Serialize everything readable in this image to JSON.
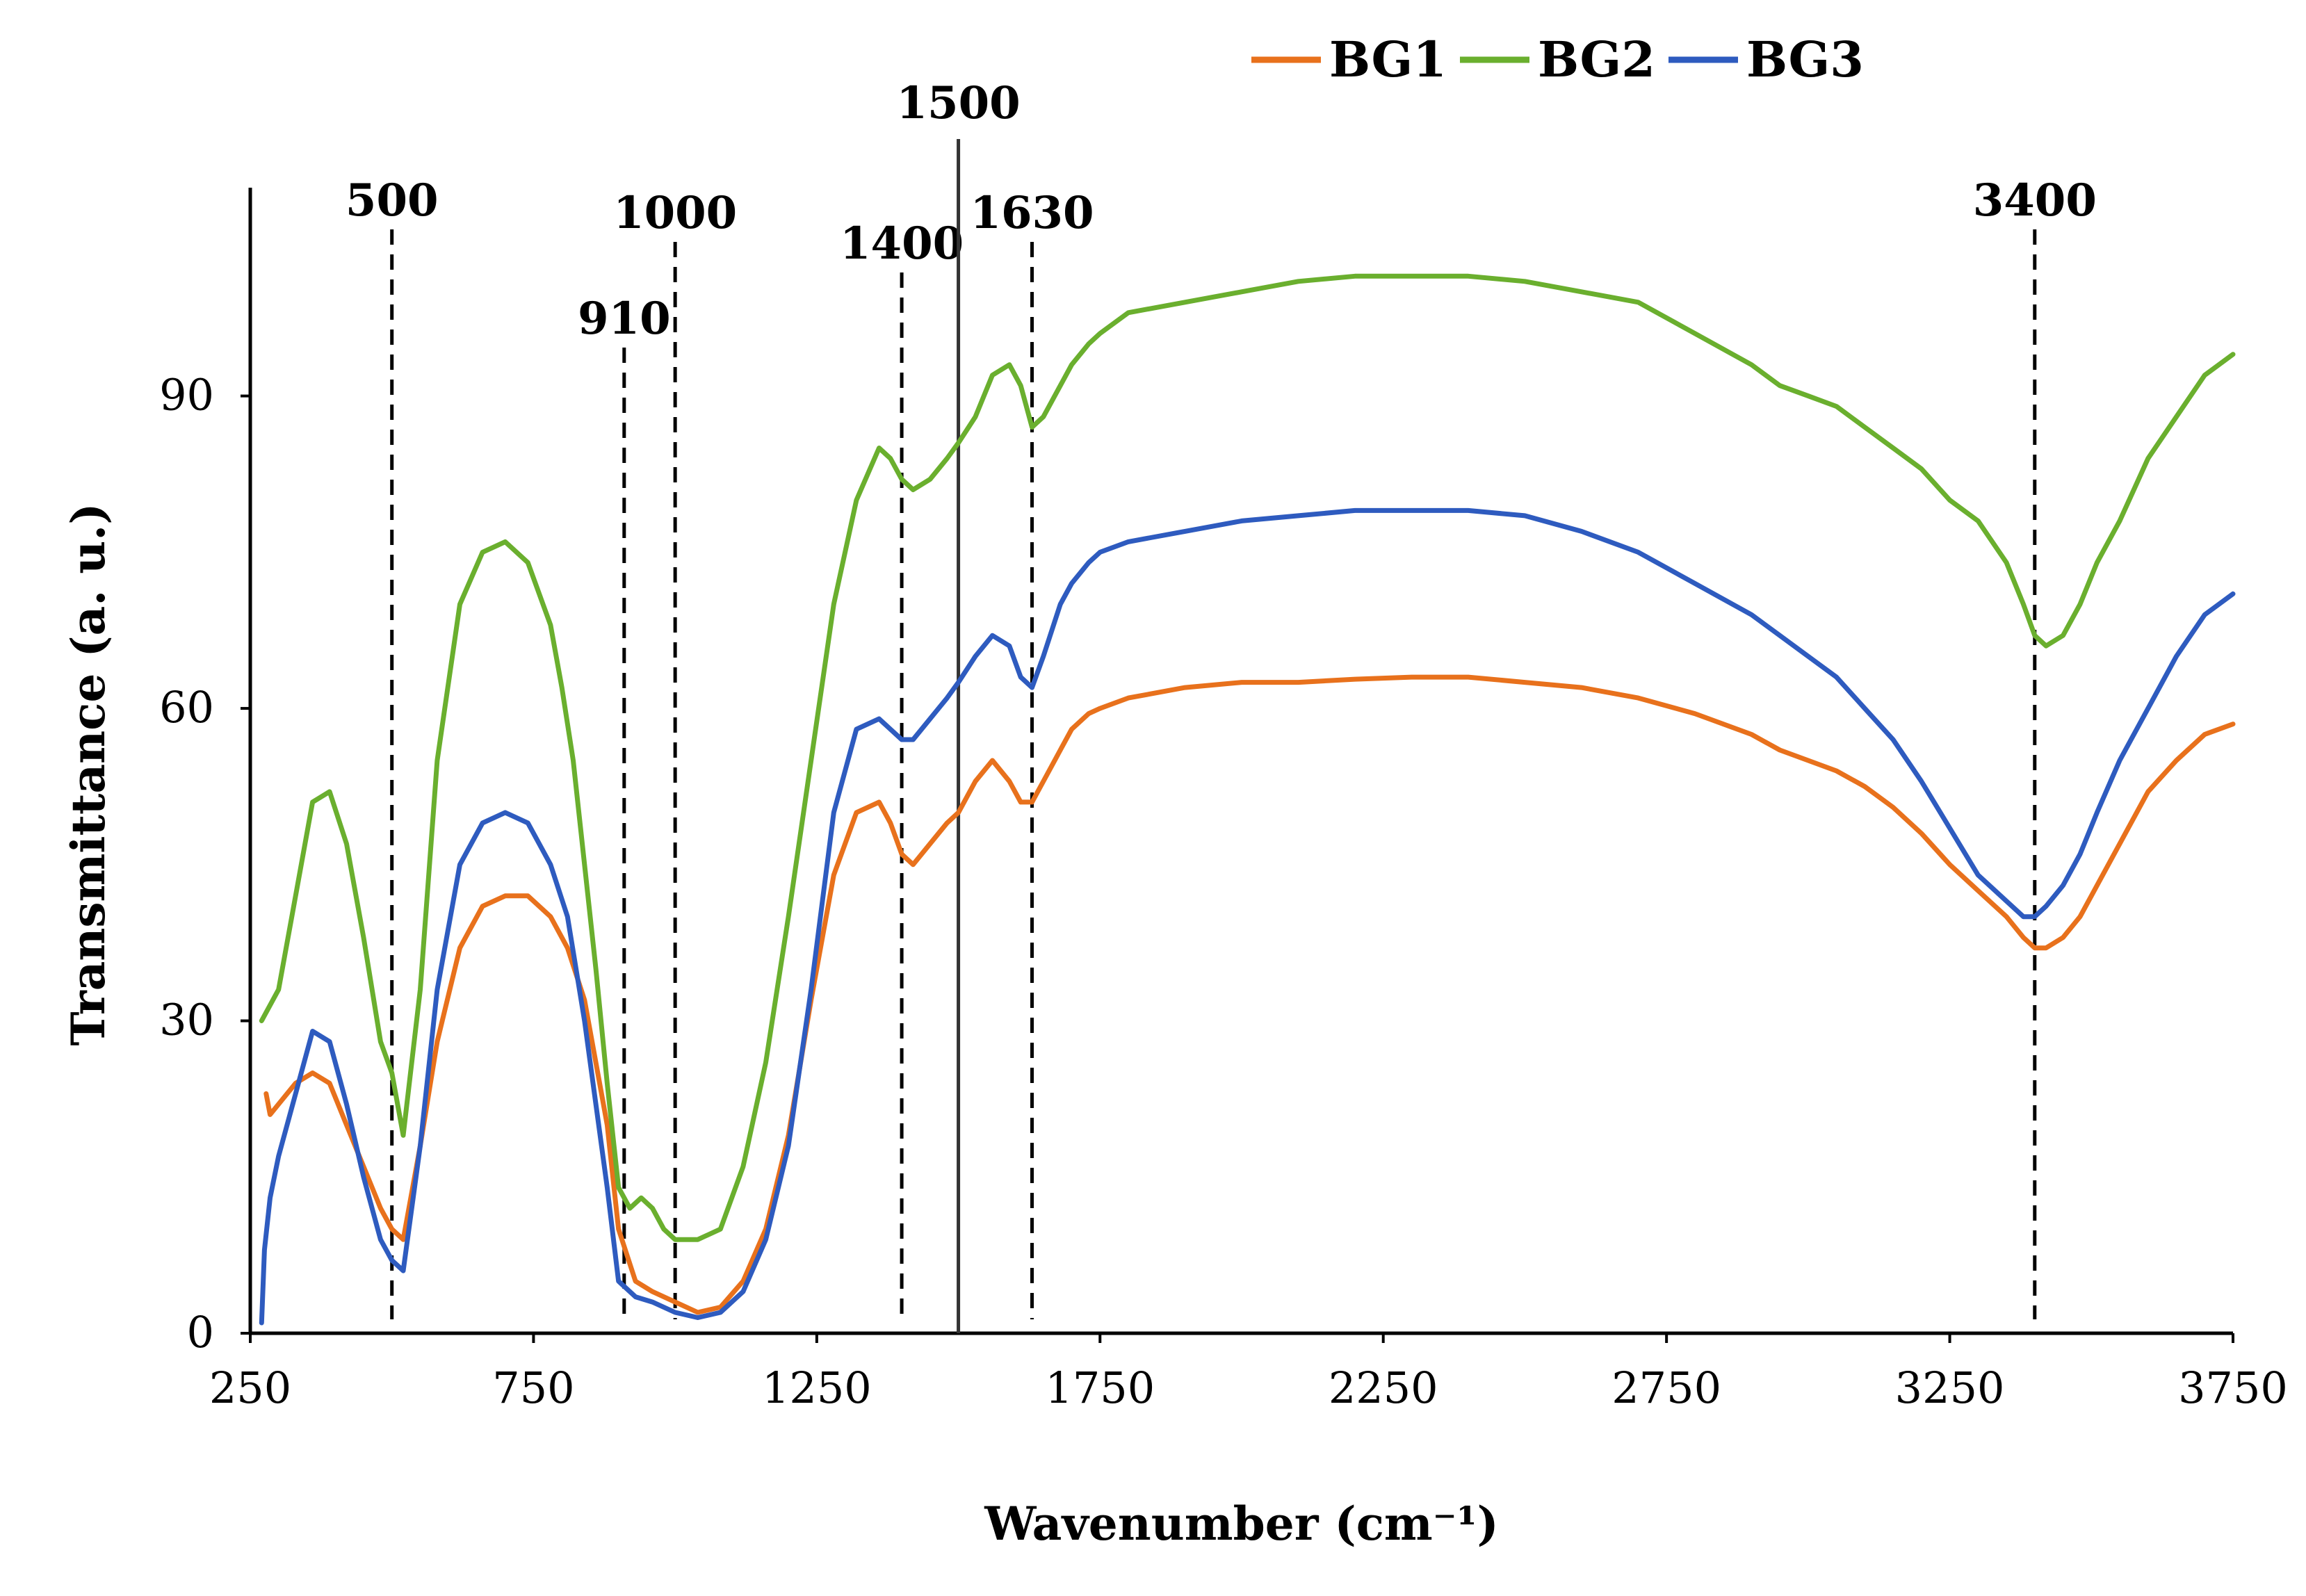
{
  "chart_data": {
    "type": "line",
    "title": "",
    "xlabel": "Wavenumber (cm⁻¹)",
    "ylabel": "Transmittance (a. u.)",
    "xlim": [
      250,
      3750
    ],
    "ylim": [
      0,
      110
    ],
    "xticks": [
      250,
      750,
      1250,
      1750,
      2250,
      2750,
      3250,
      3750
    ],
    "yticks": [
      0,
      30,
      60,
      90
    ],
    "legend_position": "top-right",
    "peak_lines": [
      {
        "x": 500,
        "label": "500",
        "style": "dashed"
      },
      {
        "x": 910,
        "label": "910",
        "style": "dashed"
      },
      {
        "x": 1000,
        "label": "1000",
        "style": "dashed"
      },
      {
        "x": 1400,
        "label": "1400",
        "style": "dashed"
      },
      {
        "x": 1500,
        "label": "1500",
        "style": "solid"
      },
      {
        "x": 1630,
        "label": "1630",
        "style": "dashed"
      },
      {
        "x": 3400,
        "label": "3400",
        "style": "dashed"
      }
    ],
    "series": [
      {
        "name": "BG1",
        "color": "#E8711C",
        "x": [
          278,
          285,
          300,
          330,
          360,
          390,
          420,
          450,
          480,
          500,
          520,
          550,
          580,
          620,
          660,
          700,
          740,
          780,
          810,
          840,
          860,
          880,
          900,
          930,
          960,
          1000,
          1040,
          1080,
          1120,
          1160,
          1200,
          1240,
          1280,
          1320,
          1360,
          1380,
          1400,
          1420,
          1450,
          1480,
          1500,
          1530,
          1560,
          1590,
          1610,
          1630,
          1650,
          1680,
          1700,
          1730,
          1750,
          1800,
          1900,
          2000,
          2100,
          2200,
          2300,
          2400,
          2500,
          2600,
          2700,
          2800,
          2900,
          2950,
          3000,
          3050,
          3100,
          3150,
          3200,
          3250,
          3300,
          3350,
          3380,
          3400,
          3420,
          3450,
          3480,
          3510,
          3550,
          3600,
          3650,
          3700,
          3750
        ],
        "values": [
          23,
          21,
          22,
          24,
          25,
          24,
          20,
          16,
          12,
          10,
          9,
          18,
          28,
          37,
          41,
          42,
          42,
          40,
          37,
          32,
          26,
          20,
          10,
          5,
          4,
          3,
          2,
          2.5,
          5,
          10,
          19,
          32,
          44,
          50,
          51,
          49,
          46,
          45,
          47,
          49,
          50,
          53,
          55,
          53,
          51,
          51,
          53,
          56,
          58,
          59.5,
          60,
          61,
          62,
          62.5,
          62.5,
          62.8,
          63,
          63,
          62.5,
          62,
          61,
          59.5,
          57.5,
          56,
          55,
          54,
          52.5,
          50.5,
          48,
          45,
          42.5,
          40,
          38,
          37,
          37,
          38,
          40,
          43,
          47,
          52,
          55,
          57.5,
          58.5
        ]
      },
      {
        "name": "BG2",
        "color": "#6AAF2E",
        "x": [
          270,
          300,
          330,
          360,
          390,
          420,
          450,
          480,
          500,
          520,
          550,
          580,
          620,
          660,
          700,
          740,
          780,
          800,
          820,
          840,
          860,
          880,
          900,
          920,
          940,
          960,
          980,
          1000,
          1040,
          1080,
          1120,
          1160,
          1200,
          1240,
          1280,
          1320,
          1360,
          1380,
          1400,
          1420,
          1450,
          1480,
          1500,
          1530,
          1560,
          1590,
          1610,
          1630,
          1650,
          1680,
          1700,
          1730,
          1750,
          1800,
          1900,
          2000,
          2100,
          2200,
          2300,
          2400,
          2500,
          2600,
          2700,
          2800,
          2900,
          2950,
          3000,
          3050,
          3100,
          3150,
          3200,
          3250,
          3300,
          3350,
          3380,
          3400,
          3420,
          3450,
          3480,
          3510,
          3550,
          3600,
          3650,
          3700,
          3750
        ],
        "values": [
          30,
          33,
          42,
          51,
          52,
          47,
          38,
          28,
          25,
          19,
          33,
          55,
          70,
          75,
          76,
          74,
          68,
          62,
          55,
          45,
          35,
          24,
          14,
          12,
          13,
          12,
          10,
          9,
          9,
          10,
          16,
          26,
          40,
          55,
          70,
          80,
          85,
          84,
          82,
          81,
          82,
          84,
          85.5,
          88,
          92,
          93,
          91,
          87,
          88,
          91,
          93,
          95,
          96,
          98,
          99,
          100,
          101,
          101.5,
          101.5,
          101.5,
          101,
          100,
          99,
          96,
          93,
          91,
          90,
          89,
          87,
          85,
          83,
          80,
          78,
          74,
          70,
          67,
          66,
          67,
          70,
          74,
          78,
          84,
          88,
          92,
          94
        ]
      },
      {
        "name": "BG3",
        "color": "#2E5BBF",
        "x": [
          270,
          275,
          285,
          300,
          330,
          360,
          390,
          420,
          450,
          480,
          500,
          520,
          550,
          580,
          620,
          660,
          700,
          740,
          780,
          810,
          840,
          860,
          880,
          900,
          930,
          960,
          1000,
          1040,
          1080,
          1120,
          1160,
          1200,
          1240,
          1280,
          1320,
          1360,
          1380,
          1400,
          1420,
          1450,
          1480,
          1500,
          1530,
          1560,
          1590,
          1610,
          1630,
          1650,
          1680,
          1700,
          1730,
          1750,
          1800,
          1900,
          2000,
          2100,
          2200,
          2300,
          2400,
          2500,
          2600,
          2700,
          2800,
          2900,
          2950,
          3000,
          3050,
          3100,
          3150,
          3200,
          3250,
          3300,
          3350,
          3380,
          3400,
          3420,
          3450,
          3480,
          3510,
          3550,
          3600,
          3650,
          3700,
          3750
        ],
        "values": [
          1,
          8,
          13,
          17,
          23,
          29,
          28,
          22,
          15,
          9,
          7,
          6,
          18,
          33,
          45,
          49,
          50,
          49,
          45,
          40,
          30,
          22,
          14,
          5,
          3.5,
          3,
          2,
          1.5,
          2,
          4,
          9,
          18,
          33,
          50,
          58,
          59,
          58,
          57,
          57,
          59,
          61,
          62.5,
          65,
          67,
          66,
          63,
          62,
          65,
          70,
          72,
          74,
          75,
          76,
          77,
          78,
          78.5,
          79,
          79,
          79,
          78.5,
          77,
          75,
          72,
          69,
          67,
          65,
          63,
          60,
          57,
          53,
          48.5,
          44,
          41.5,
          40,
          40,
          41,
          43,
          46,
          50,
          55,
          60,
          65,
          69,
          71
        ]
      }
    ]
  }
}
